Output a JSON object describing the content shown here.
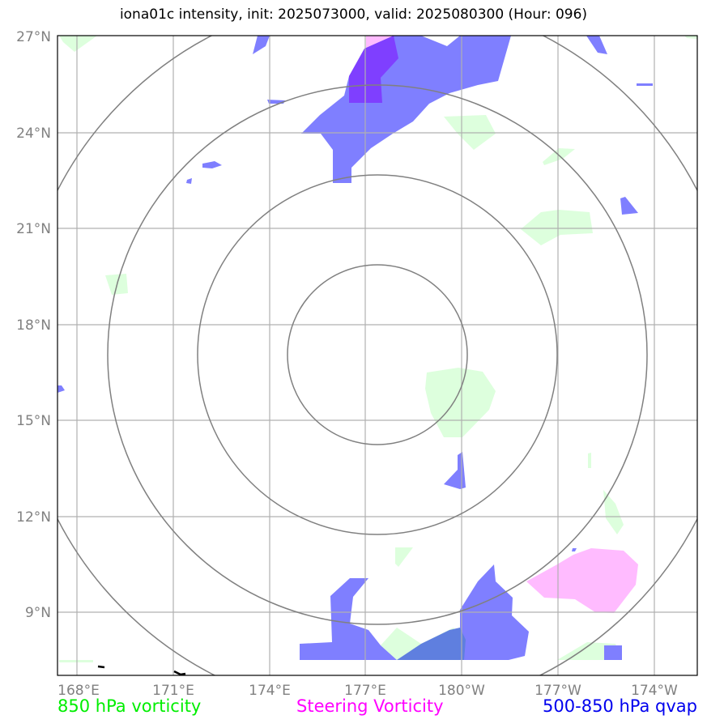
{
  "title": "iona01c intensity, init: 2025073000, valid: 2025080300 (Hour: 096)",
  "map": {
    "lat_ticks": [
      "27°N",
      "24°N",
      "21°N",
      "18°N",
      "15°N",
      "12°N",
      "9°N"
    ],
    "lon_ticks": [
      "168°E",
      "171°E",
      "174°E",
      "177°E",
      "180°W",
      "177°W",
      "174°W"
    ],
    "lat_range": [
      7.0,
      27.0
    ],
    "lon_range_note": "167.4°E to 172.6°W",
    "grid": true,
    "range_rings": 4
  },
  "legend": {
    "vorticity_850": {
      "label": "850 hPa vorticity",
      "color": "#00ee00"
    },
    "steering_vorticity": {
      "label": "Steering Vorticity",
      "color": "#ff00ff"
    },
    "qvap": {
      "label": "500-850 hPa qvap",
      "color": "#0000ee"
    }
  },
  "fills": {
    "green": "#ddffdd",
    "pink": "#ffbbff",
    "blue": "#7f7fff",
    "purple": "#7f3fff"
  }
}
